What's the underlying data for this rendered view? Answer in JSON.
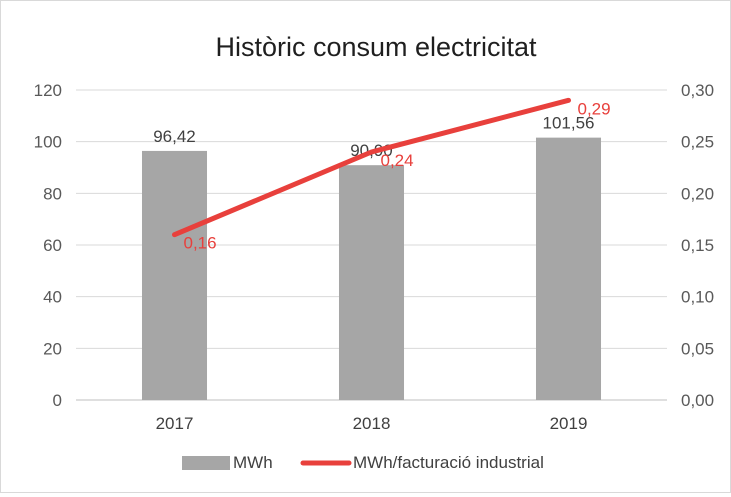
{
  "chart_data": {
    "type": "bar",
    "title": "Històric consum electricitat",
    "categories": [
      "2017",
      "2018",
      "2019"
    ],
    "series": [
      {
        "name": "MWh",
        "type": "bar",
        "axis": "left",
        "values": [
          96.42,
          90.9,
          101.56
        ],
        "labels": [
          "96,42",
          "90,90",
          "101,56"
        ],
        "color": "#a6a6a6"
      },
      {
        "name": "MWh/facturació industrial",
        "type": "line",
        "axis": "right",
        "values": [
          0.16,
          0.24,
          0.29
        ],
        "labels": [
          "0,16",
          "0,24",
          "0,29"
        ],
        "color": "#e8403c"
      }
    ],
    "y_left": {
      "lim": [
        0,
        120
      ],
      "ticks": [
        0,
        20,
        40,
        60,
        80,
        100,
        120
      ],
      "tick_labels": [
        "0",
        "20",
        "40",
        "60",
        "80",
        "100",
        "120"
      ]
    },
    "y_right": {
      "lim": [
        0,
        0.3
      ],
      "ticks": [
        0,
        0.05,
        0.1,
        0.15,
        0.2,
        0.25,
        0.3
      ],
      "tick_labels": [
        "0,00",
        "0,05",
        "0,10",
        "0,15",
        "0,20",
        "0,25",
        "0,30"
      ]
    },
    "grid": true,
    "legend": "bottom",
    "xlabel": "",
    "ylabel": ""
  }
}
